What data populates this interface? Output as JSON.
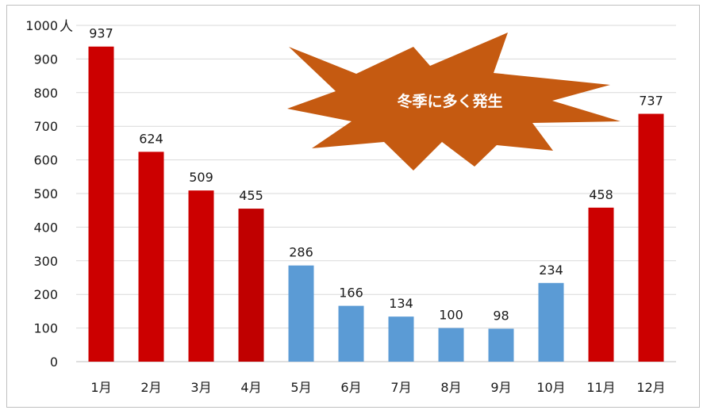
{
  "chart_data": {
    "type": "bar",
    "title": "",
    "xlabel": "",
    "ylabel": "",
    "y_unit": "人",
    "ylim": [
      0,
      1000
    ],
    "y_ticks": [
      0,
      100,
      200,
      300,
      400,
      500,
      600,
      700,
      800,
      900,
      1000
    ],
    "grid": true,
    "legend": "none",
    "categories": [
      "1月",
      "2月",
      "3月",
      "4月",
      "5月",
      "6月",
      "7月",
      "8月",
      "9月",
      "10月",
      "11月",
      "12月"
    ],
    "values": [
      937,
      624,
      509,
      455,
      286,
      166,
      134,
      100,
      98,
      234,
      458,
      737
    ],
    "bar_colors": [
      "#cc0000",
      "#cc0000",
      "#cc0000",
      "#c00000",
      "#5b9bd5",
      "#5b9bd5",
      "#5b9bd5",
      "#5b9bd5",
      "#5b9bd5",
      "#5b9bd5",
      "#cc0000",
      "#cc0000"
    ],
    "annotation": {
      "text": "冬季に多く発生",
      "shape": "explosion",
      "fill": "#c55a11"
    }
  }
}
